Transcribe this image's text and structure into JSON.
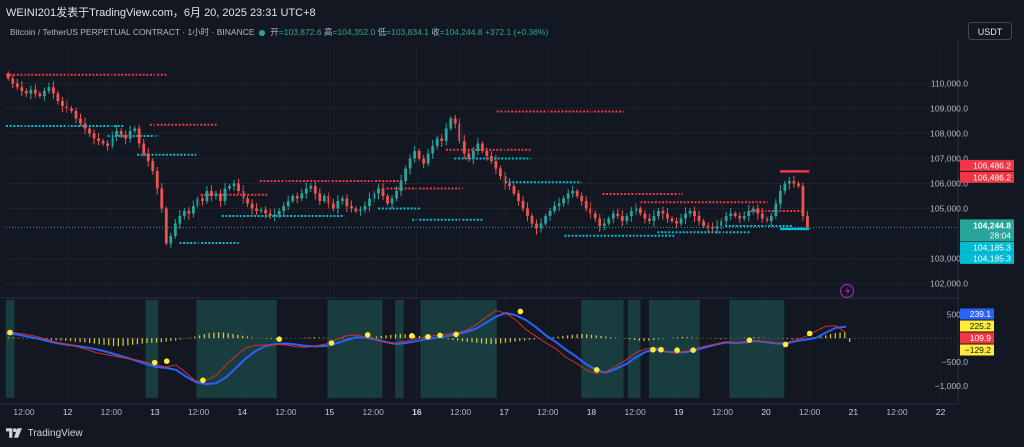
{
  "header": {
    "title": "WEINI201发表于TradingView.com，6月 20, 2025 23:31 UTC+8"
  },
  "legend": {
    "symbol": "Bitcoin / TetherUS PERPETUAL CONTRACT · 1小时 · BINANCE",
    "open_label": "开",
    "open": "=103,872.6",
    "high_label": "高",
    "high": "=104,352.0",
    "low_label": "低",
    "low": "=103,834.1",
    "close_label": "收",
    "close": "=104,244.8",
    "change": "+372.1 (+0.36%)"
  },
  "currency": "USDT",
  "footer": {
    "brand": "TradingView"
  },
  "colors": {
    "up": "#26a69a",
    "down": "#ef5350",
    "bg": "#131722",
    "cyan_level": "#00bcd4",
    "red_level": "#f23645"
  },
  "chart_data": [
    {
      "type": "candlestick",
      "title": "",
      "x_ticks": [
        "12:00",
        "12",
        "12:00",
        "13",
        "12:00",
        "14",
        "12:00",
        "15",
        "12:00",
        "16",
        "12:00",
        "17",
        "12:00",
        "18",
        "12:00",
        "19",
        "12:00",
        "20",
        "12:00",
        "21",
        "12:00",
        "22"
      ],
      "y_ticks": [
        "110,000.0",
        "109,000.0",
        "108,000.0",
        "107,000.0",
        "106,000.0",
        "105,000.0",
        "103,000.0",
        "102,000.0"
      ],
      "ylim": [
        101500,
        111500
      ],
      "x_range": [
        0,
        200
      ],
      "last_price": {
        "value": 104244.8,
        "label": "104,244.8",
        "countdown": "28:04"
      },
      "price_tags": [
        {
          "value": 106486.2,
          "label": "106,486.2",
          "color": "#f23645"
        },
        {
          "value": 106486.2,
          "label": "106,486.2",
          "color": "#f23645"
        },
        {
          "value": 104185.3,
          "label": "104,185.3",
          "color": "#00bcd4"
        },
        {
          "value": 104185.3,
          "label": "104,185.3",
          "color": "#00bcd4"
        }
      ],
      "levels": [
        {
          "price": 110350,
          "x0": 0,
          "x1": 38,
          "color": "red"
        },
        {
          "price": 108300,
          "x0": 0,
          "x1": 28,
          "color": "cyan"
        },
        {
          "price": 107900,
          "x0": 24,
          "x1": 36,
          "color": "cyan"
        },
        {
          "price": 108350,
          "x0": 34,
          "x1": 50,
          "color": "red"
        },
        {
          "price": 107150,
          "x0": 31,
          "x1": 45,
          "color": "cyan"
        },
        {
          "price": 103620,
          "x0": 41,
          "x1": 55,
          "color": "cyan"
        },
        {
          "price": 105550,
          "x0": 46,
          "x1": 62,
          "color": "red"
        },
        {
          "price": 106100,
          "x0": 60,
          "x1": 94,
          "color": "red"
        },
        {
          "price": 104700,
          "x0": 51,
          "x1": 80,
          "color": "cyan"
        },
        {
          "price": 105800,
          "x0": 90,
          "x1": 108,
          "color": "red"
        },
        {
          "price": 105000,
          "x0": 88,
          "x1": 98,
          "color": "cyan"
        },
        {
          "price": 104550,
          "x0": 96,
          "x1": 113,
          "color": "cyan"
        },
        {
          "price": 107350,
          "x0": 104,
          "x1": 124,
          "color": "red"
        },
        {
          "price": 107000,
          "x0": 106,
          "x1": 124,
          "color": "cyan"
        },
        {
          "price": 108880,
          "x0": 116,
          "x1": 146,
          "color": "red"
        },
        {
          "price": 106050,
          "x0": 118,
          "x1": 136,
          "color": "cyan"
        },
        {
          "price": 103910,
          "x0": 132,
          "x1": 158,
          "color": "cyan"
        },
        {
          "price": 105580,
          "x0": 141,
          "x1": 160,
          "color": "red"
        },
        {
          "price": 105250,
          "x0": 150,
          "x1": 180,
          "color": "red"
        },
        {
          "price": 104050,
          "x0": 154,
          "x1": 176,
          "color": "cyan"
        },
        {
          "price": 104900,
          "x0": 176,
          "x1": 188,
          "color": "red"
        },
        {
          "price": 104300,
          "x0": 170,
          "x1": 186,
          "color": "cyan"
        },
        {
          "price": 106486.2,
          "x0": 183,
          "x1": 190,
          "color": "red"
        },
        {
          "price": 104185.3,
          "x0": 183,
          "x1": 190,
          "color": "cyan"
        }
      ],
      "candles_close": [
        110200,
        110000,
        109850,
        109700,
        109600,
        109750,
        109600,
        109500,
        109700,
        109850,
        109600,
        109300,
        109100,
        109000,
        108900,
        108600,
        108400,
        108200,
        108000,
        107800,
        107700,
        107600,
        107500,
        107900,
        108100,
        107950,
        107800,
        108100,
        108200,
        107600,
        107200,
        106900,
        106500,
        105800,
        105000,
        103600,
        103900,
        104400,
        104700,
        104900,
        104800,
        105100,
        105400,
        105300,
        105700,
        105500,
        105600,
        105300,
        105800,
        105900,
        106000,
        105700,
        105400,
        105200,
        105000,
        104900,
        104950,
        104800,
        104700,
        104750,
        104900,
        105100,
        105300,
        105500,
        105400,
        105600,
        105800,
        105900,
        105600,
        105300,
        105500,
        105200,
        105000,
        105300,
        105400,
        105100,
        105000,
        104900,
        104950,
        105100,
        105400,
        105600,
        105800,
        105500,
        105200,
        105400,
        105700,
        106100,
        106600,
        107000,
        107300,
        107000,
        106800,
        107200,
        107500,
        107800,
        107700,
        108200,
        108600,
        108400,
        107700,
        107200,
        107000,
        107300,
        107600,
        107300,
        107100,
        106900,
        106600,
        106300,
        106000,
        105900,
        105600,
        105300,
        105000,
        104700,
        104400,
        104200,
        104400,
        104700,
        104900,
        105100,
        105200,
        105400,
        105600,
        105700,
        105500,
        105300,
        105000,
        104800,
        104600,
        104300,
        104400,
        104600,
        104800,
        104700,
        104500,
        104700,
        104900,
        105000,
        104800,
        104600,
        104500,
        104700,
        104900,
        104800,
        104600,
        104500,
        104400,
        104600,
        104800,
        104900,
        104700,
        104500,
        104300,
        104250,
        104200,
        104300,
        104500,
        104700,
        104800,
        104700,
        104600,
        104700,
        104900,
        105000,
        104800,
        104600,
        104500,
        104700,
        105200,
        105700,
        106000,
        106100,
        106000,
        105900,
        104700,
        104244.8
      ]
    },
    {
      "type": "line",
      "title": "",
      "y_ticks": [
        "500.0",
        "−500.0",
        "−1,000.0"
      ],
      "ylim": [
        -1250,
        800
      ],
      "tags": [
        {
          "value": 239.1,
          "label": "239.1",
          "bg": "#2962ff",
          "fg": "#ffffff"
        },
        {
          "value": 225.2,
          "label": "225.2",
          "bg": "#ffeb3b",
          "fg": "#131722"
        },
        {
          "value": 109.9,
          "label": "109.9",
          "bg": "#f23645",
          "fg": "#ffffff"
        },
        {
          "value": -129.2,
          "label": "−129.2",
          "bg": "#ffeb3b",
          "fg": "#131722"
        }
      ],
      "shaded_zones": [
        [
          0,
          2
        ],
        [
          33,
          36
        ],
        [
          45,
          64
        ],
        [
          76,
          89
        ],
        [
          92,
          94
        ],
        [
          98,
          116
        ],
        [
          136,
          146
        ],
        [
          147,
          150
        ],
        [
          152,
          164
        ],
        [
          171,
          184
        ]
      ],
      "series": [
        {
          "color": "blue",
          "values": [
            100,
            80,
            40,
            0,
            -50,
            -100,
            -130,
            -160,
            -190,
            -230,
            -280,
            -340,
            -400,
            -470,
            -540,
            -600,
            -620,
            -660,
            -800,
            -920,
            -960,
            -940,
            -820,
            -620,
            -420,
            -260,
            -160,
            -120,
            -110,
            -130,
            -160,
            -170,
            -160,
            -110,
            -40,
            20,
            10,
            -30,
            -80,
            -120,
            -100,
            -60,
            -20,
            10,
            40,
            80,
            130,
            200,
            320,
            450,
            530,
            480,
            380,
            230,
            60,
            -80,
            -240,
            -380,
            -540,
            -660,
            -720,
            -640,
            -540,
            -400,
            -280,
            -240,
            -280,
            -300,
            -290,
            -240,
            -190,
            -130,
            -90,
            -100,
            -80,
            -60,
            -80,
            -110,
            -110,
            -60,
            -30,
            10,
            120,
            220,
            239.1
          ]
        },
        {
          "color": "red",
          "values": [
            140,
            110,
            80,
            40,
            -20,
            -80,
            -120,
            -170,
            -230,
            -300,
            -340,
            -380,
            -420,
            -450,
            -500,
            -560,
            -600,
            -560,
            -720,
            -900,
            -880,
            -780,
            -560,
            -360,
            -200,
            -150,
            -140,
            -130,
            -140,
            -180,
            -190,
            -160,
            -120,
            -30,
            50,
            70,
            20,
            -40,
            -90,
            -100,
            -60,
            -10,
            20,
            60,
            80,
            110,
            160,
            280,
            440,
            580,
            520,
            380,
            180,
            40,
            -100,
            -220,
            -400,
            -520,
            -660,
            -740,
            -700,
            -580,
            -460,
            -300,
            -220,
            -200,
            -280,
            -310,
            -270,
            -220,
            -160,
            -120,
            -70,
            -90,
            -100,
            -60,
            -70,
            -100,
            -90,
            -40,
            40,
            150,
            250,
            260,
            109.9
          ]
        }
      ],
      "histogram": [
        40,
        30,
        20,
        10,
        -10,
        -20,
        -30,
        -40,
        -50,
        -60,
        -70,
        -80,
        -90,
        -100,
        -110,
        -130,
        -150,
        -170,
        -190,
        -210,
        -230,
        -250,
        -270,
        -280,
        -270,
        -250,
        -230,
        -210,
        -190,
        -170,
        -160,
        -150,
        -140,
        -120,
        -100,
        -80,
        -40,
        -10,
        20,
        60,
        100,
        140,
        180,
        200,
        210,
        200,
        180,
        150,
        120,
        90,
        60,
        30,
        10,
        -10,
        -20,
        -30,
        -30,
        -20,
        -10,
        -5,
        0,
        10,
        20,
        30,
        40,
        30,
        20,
        10,
        0,
        -10,
        -20,
        -30,
        -20,
        -10,
        0,
        20,
        40,
        60,
        80,
        100,
        120,
        140,
        150,
        140,
        120,
        100,
        80,
        60,
        40,
        20,
        0,
        -20,
        -40,
        -60,
        -80,
        -100,
        -120,
        -140,
        -160,
        -180,
        -200,
        -210,
        -200,
        -180,
        -160,
        -140,
        -120,
        -100,
        -80,
        -60,
        -40,
        -20,
        0,
        20,
        40,
        60,
        80,
        100,
        120,
        140,
        150,
        140,
        120,
        100,
        80,
        60,
        40,
        20,
        0,
        -20,
        -40,
        -60,
        -80,
        -100,
        -80,
        -60,
        -40,
        -20,
        0,
        20,
        40,
        50,
        40,
        30,
        20,
        10,
        0,
        -10,
        -20,
        -30,
        -20,
        -10,
        0,
        10,
        20,
        30,
        40,
        30,
        20,
        10,
        0,
        -10,
        -20,
        -30,
        -40,
        -30,
        -20,
        -10,
        0,
        20,
        60,
        100,
        150,
        180,
        200,
        225.2,
        -129.2
      ],
      "dots": [
        [
          1,
          120
        ],
        [
          37,
          -510
        ],
        [
          40,
          -480
        ],
        [
          49,
          -880
        ],
        [
          68,
          -20
        ],
        [
          81,
          -100
        ],
        [
          90,
          70
        ],
        [
          101,
          50
        ],
        [
          105,
          30
        ],
        [
          108,
          60
        ],
        [
          112,
          80
        ],
        [
          128,
          560
        ],
        [
          147,
          -660
        ],
        [
          161,
          -240
        ],
        [
          163,
          -240
        ],
        [
          167,
          -250
        ],
        [
          171,
          -250
        ],
        [
          185,
          -40
        ],
        [
          194,
          -130
        ],
        [
          200,
          100
        ]
      ]
    }
  ]
}
